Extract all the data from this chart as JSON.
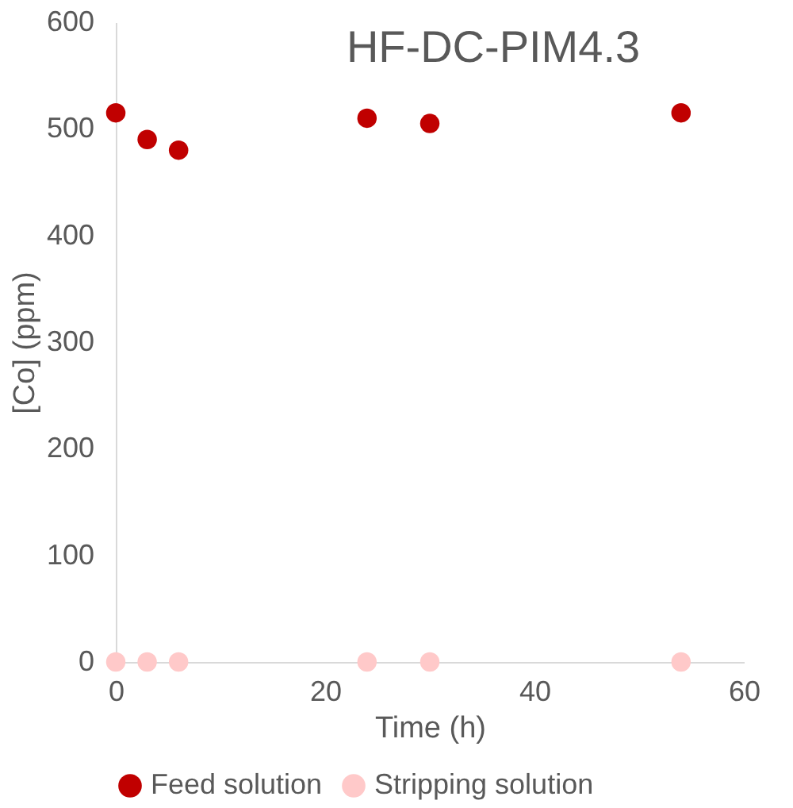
{
  "chart_data": {
    "type": "scatter",
    "title": "HF-DC-PIM4.3",
    "xlabel": "Time (h)",
    "ylabel": "[Co] (ppm)",
    "x": [
      0,
      3,
      6,
      24,
      30,
      54
    ],
    "series": [
      {
        "name": "Feed solution",
        "color": "#c00000",
        "values": [
          515,
          490,
          480,
          510,
          505,
          515
        ]
      },
      {
        "name": "Stripping solution",
        "color": "#ffc9c9",
        "values": [
          0,
          0,
          0,
          0,
          0,
          0
        ]
      }
    ],
    "xlim": [
      0,
      60
    ],
    "xticks": [
      0,
      20,
      40,
      60
    ],
    "ylim": [
      0,
      600
    ],
    "yticks": [
      0,
      100,
      200,
      300,
      400,
      500,
      600
    ],
    "grid": false,
    "legend": "bottom",
    "marker": "circle"
  }
}
